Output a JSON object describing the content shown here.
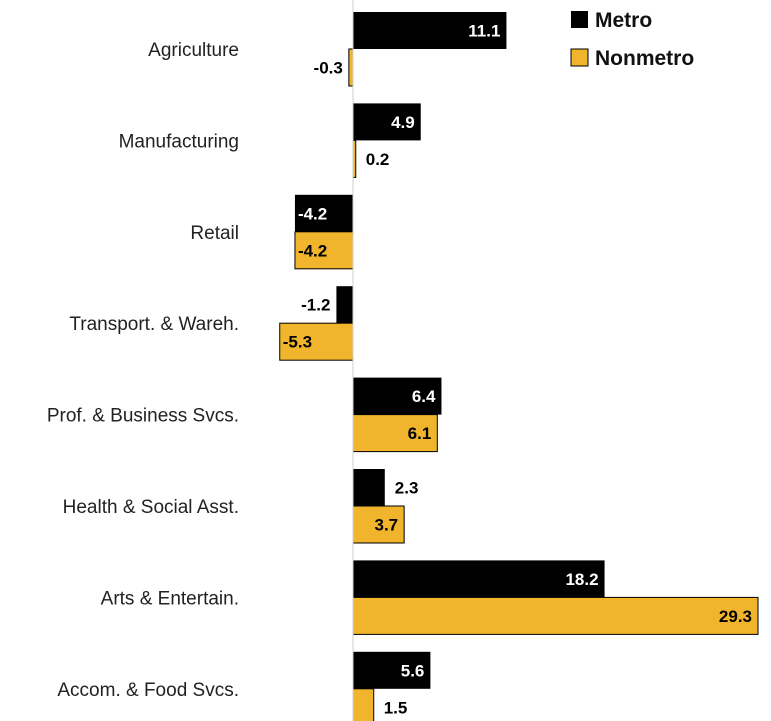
{
  "chart_data": {
    "type": "bar",
    "orientation": "horizontal",
    "categories": [
      "Agriculture",
      "Manufacturing",
      "Retail",
      "Transport. & Wareh.",
      "Prof. & Business Svcs.",
      "Health & Social Asst.",
      "Arts & Entertain.",
      "Accom. & Food Svcs."
    ],
    "series": [
      {
        "name": "Metro",
        "color": "#000000",
        "values": [
          11.1,
          4.9,
          -4.2,
          -1.2,
          6.4,
          2.3,
          18.2,
          5.6
        ]
      },
      {
        "name": "Nonmetro",
        "color": "#F0B52C",
        "values": [
          -0.3,
          0.2,
          -4.2,
          -5.3,
          6.1,
          3.7,
          29.3,
          1.5
        ]
      }
    ],
    "xlim": [
      -5.3,
      29.3
    ],
    "grid": false,
    "legend": {
      "position": "top-right"
    },
    "title": "",
    "xlabel": "",
    "ylabel": ""
  }
}
